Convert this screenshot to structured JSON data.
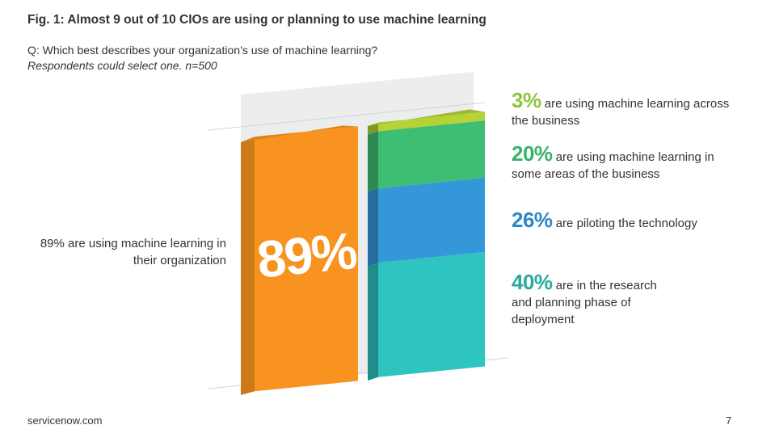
{
  "title": "Fig. 1: Almost 9 out of 10 CIOs are using or planning to use machine learning",
  "question": "Q: Which best describes your organization’s use of machine learning?",
  "respondents_note": "Respondents could select one. n=500",
  "footer": {
    "brand": "servicenow.com",
    "page_number": "7"
  },
  "chart_data": {
    "type": "bar",
    "total": {
      "value": 89,
      "label": "89%",
      "description": "89% are using machine learning in their organization",
      "color": "#F7931E"
    },
    "segments": [
      {
        "value": 40,
        "pct_label": "40%",
        "text": "are in the research and planning phase of deployment",
        "color": "#2EC4C0",
        "text_color": "#2BA89F"
      },
      {
        "value": 26,
        "pct_label": "26%",
        "text": "are piloting the technology",
        "color": "#3498D8",
        "text_color": "#2E86C8"
      },
      {
        "value": 20,
        "pct_label": "20%",
        "text": "are using machine learning in some areas of the business",
        "color": "#3DBE73",
        "text_color": "#36B36A"
      },
      {
        "value": 3,
        "pct_label": "3%",
        "text": "are using machine learning across the business",
        "color": "#B5D334",
        "text_color": "#8CC63E"
      }
    ]
  }
}
